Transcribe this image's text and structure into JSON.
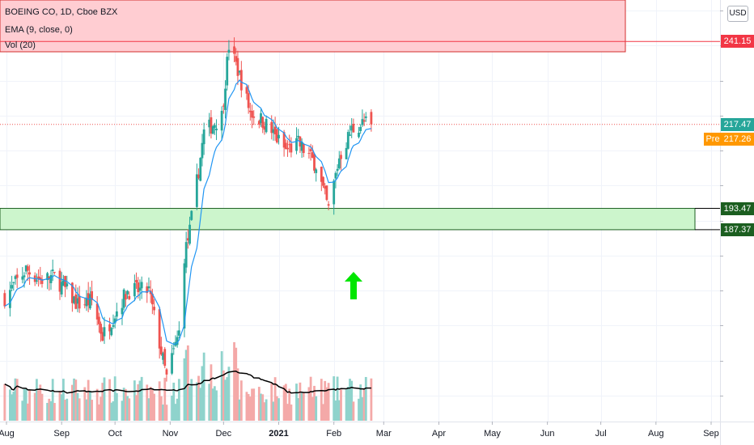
{
  "legend": {
    "title": "BOEING CO, 1D, Cboe BZX",
    "ema": "EMA (9, close, 0)",
    "vol": "Vol (20)"
  },
  "currency_button": "USD",
  "price_labels": {
    "resistance": "241.15",
    "last": "217.47",
    "pre_tag": "Pre",
    "pre": "217.26",
    "zone_top": "193.47",
    "zone_bottom": "187.37"
  },
  "colors": {
    "up": "#26a69a",
    "down": "#ef5350",
    "ema": "#2196f3",
    "volume_ma": "#000000",
    "resistance_line": "#f23645",
    "support_zone_fill": "#ccf5cc",
    "top_zone_fill": "#ffcdd2",
    "arrow": "#00e600",
    "pre_label": "#ff9800",
    "zone_label": "#1b5e20"
  },
  "chart_data": {
    "type": "candlestick",
    "title": "BOEING CO, 1D, Cboe BZX",
    "ylim": [
      132.8,
      253.0
    ],
    "x_months": [
      "Aug",
      "Sep",
      "Oct",
      "Nov",
      "Dec",
      "2021",
      "Feb",
      "Mar",
      "Apr",
      "May",
      "Jun",
      "Jul",
      "Aug",
      "Sep"
    ],
    "x_month_dates": [
      "2020-08-01",
      "2020-09-01",
      "2020-10-01",
      "2020-11-01",
      "2020-12-01",
      "2021-01-01",
      "2021-02-01",
      "2021-03-01",
      "2021-04-01",
      "2021-05-01",
      "2021-06-01",
      "2021-07-01",
      "2021-08-01",
      "2021-09-01"
    ],
    "levels": {
      "resistance": 241.15,
      "last": 217.47,
      "pre": 217.26,
      "zone_top": 193.47,
      "zone_bottom": 187.37
    },
    "anchors": [
      {
        "date": "2020-07-31",
        "close": 168
      },
      {
        "date": "2020-08-12",
        "close": 176
      },
      {
        "date": "2020-08-20",
        "close": 173
      },
      {
        "date": "2020-08-28",
        "close": 174
      },
      {
        "date": "2020-09-10",
        "close": 166
      },
      {
        "date": "2020-09-18",
        "close": 167
      },
      {
        "date": "2020-09-24",
        "close": 157
      },
      {
        "date": "2020-10-08",
        "close": 170
      },
      {
        "date": "2020-10-14",
        "close": 170
      },
      {
        "date": "2020-10-20",
        "close": 170
      },
      {
        "date": "2020-10-30",
        "close": 145
      },
      {
        "date": "2020-11-06",
        "close": 158
      },
      {
        "date": "2020-11-09",
        "close": 180
      },
      {
        "date": "2020-11-12",
        "close": 187
      },
      {
        "date": "2020-11-20",
        "close": 215
      },
      {
        "date": "2020-11-30",
        "close": 220
      },
      {
        "date": "2020-12-04",
        "close": 240
      },
      {
        "date": "2020-12-09",
        "close": 233
      },
      {
        "date": "2020-12-16",
        "close": 221
      },
      {
        "date": "2020-12-24",
        "close": 218
      },
      {
        "date": "2021-01-05",
        "close": 210
      },
      {
        "date": "2021-01-12",
        "close": 212
      },
      {
        "date": "2021-01-22",
        "close": 206
      },
      {
        "date": "2021-01-29",
        "close": 193
      },
      {
        "date": "2021-02-04",
        "close": 208
      },
      {
        "date": "2021-02-11",
        "close": 216
      },
      {
        "date": "2021-02-18",
        "close": 218
      },
      {
        "date": "2021-02-22",
        "close": 217.26
      }
    ]
  }
}
